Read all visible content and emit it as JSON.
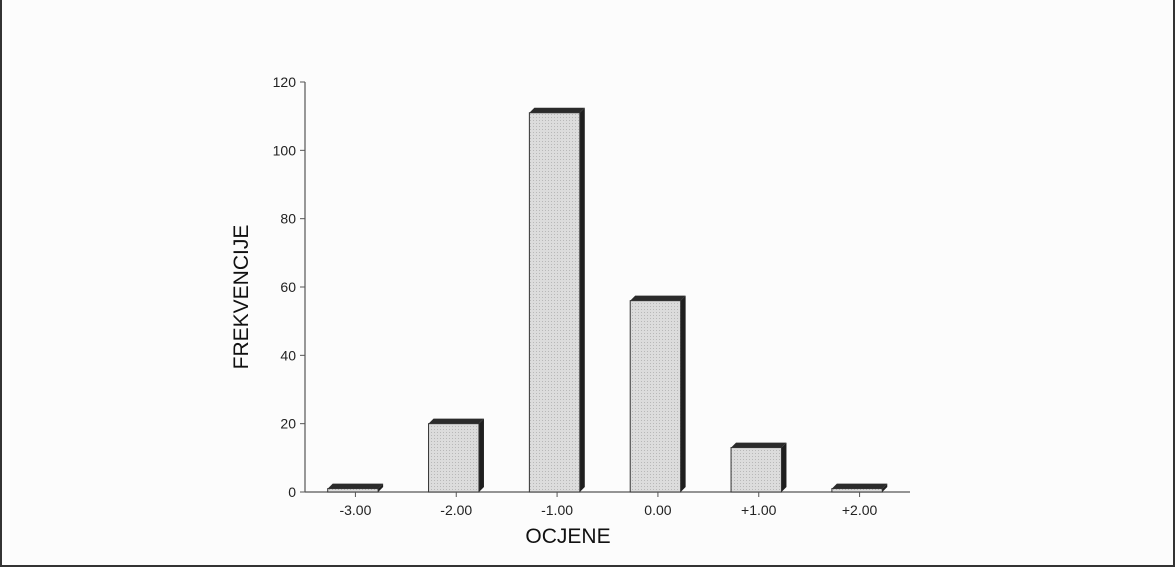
{
  "chart_data": {
    "type": "bar",
    "categories": [
      "-3.00",
      "-2.00",
      "-1.00",
      "0.00",
      "+1.00",
      "+2.00"
    ],
    "values": [
      1,
      20,
      111,
      56,
      13,
      1
    ],
    "xlabel": "OCJENE",
    "ylabel": "FREKVENCIJE",
    "ylim": [
      0,
      120
    ],
    "yticks": [
      "0",
      "20",
      "40",
      "60",
      "80",
      "100",
      "120"
    ],
    "grid": false,
    "style": "3d",
    "colors": {
      "bar_face": "#d9d9d9",
      "bar_side": "#1f1f1f",
      "bar_top": "#2b2b2b",
      "axis": "#555555"
    }
  }
}
